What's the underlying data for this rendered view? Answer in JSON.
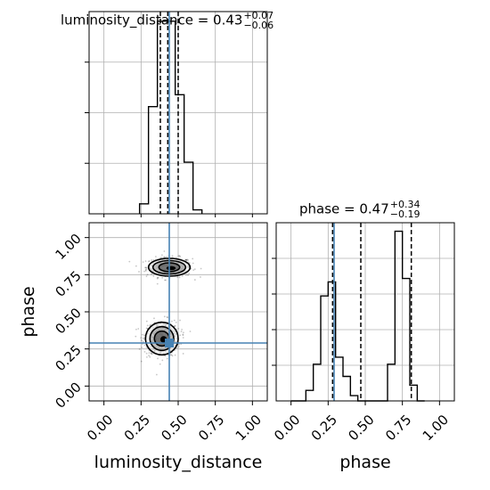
{
  "chart_data": {
    "type": "corner",
    "parameters": [
      "luminosity_distance",
      "phase"
    ],
    "truths": {
      "luminosity_distance": 0.44,
      "phase": 0.29
    },
    "titles": [
      {
        "label": "luminosity_distance = 0.43",
        "plus": "+0.07",
        "minus": "−0.06"
      },
      {
        "label": "phase = 0.47",
        "plus": "+0.34",
        "minus": "−0.19"
      }
    ],
    "axis_labels": {
      "x_left": "luminosity_distance",
      "x_right": "phase",
      "y_left": "phase"
    },
    "tick_labels": [
      "0.00",
      "0.25",
      "0.50",
      "0.75",
      "1.00"
    ],
    "limits": {
      "luminosity_distance": [
        -0.1,
        1.1
      ],
      "phase": [
        -0.1,
        1.1
      ]
    },
    "grid": true,
    "histograms": [
      {
        "parameter": "luminosity_distance",
        "bin_edges": [
          0.24,
          0.3,
          0.36,
          0.42,
          0.48,
          0.54,
          0.6,
          0.66
        ],
        "counts": [
          5,
          54,
          97,
          97,
          60,
          26,
          2
        ],
        "quantiles": [
          0.38,
          0.43,
          0.5
        ]
      },
      {
        "parameter": "phase",
        "bin_edges": [
          0.0,
          0.05,
          0.1,
          0.15,
          0.2,
          0.25,
          0.3,
          0.35,
          0.4,
          0.45,
          0.5,
          0.55,
          0.6,
          0.65,
          0.7,
          0.75,
          0.8,
          0.85,
          0.9
        ],
        "counts": [
          0,
          0,
          6,
          21,
          60,
          68,
          25,
          14,
          3,
          0,
          0,
          0,
          0,
          21,
          97,
          70,
          9,
          0
        ],
        "quantiles": [
          0.28,
          0.47,
          0.81
        ]
      }
    ],
    "density_2d": {
      "x": "luminosity_distance",
      "y": "phase",
      "modes": [
        {
          "x": 0.44,
          "y": 0.8,
          "contour_radii": [
            [
              0.14,
              0.06
            ],
            [
              0.11,
              0.045
            ],
            [
              0.07,
              0.03
            ]
          ]
        },
        {
          "x": 0.39,
          "y": 0.32,
          "contour_radii": [
            [
              0.11,
              0.11
            ],
            [
              0.08,
              0.08
            ],
            [
              0.05,
              0.05
            ]
          ]
        }
      ]
    },
    "colors": {
      "truth": "#4682b4",
      "hist": "#000000",
      "grid": "#b0b0b0"
    }
  }
}
